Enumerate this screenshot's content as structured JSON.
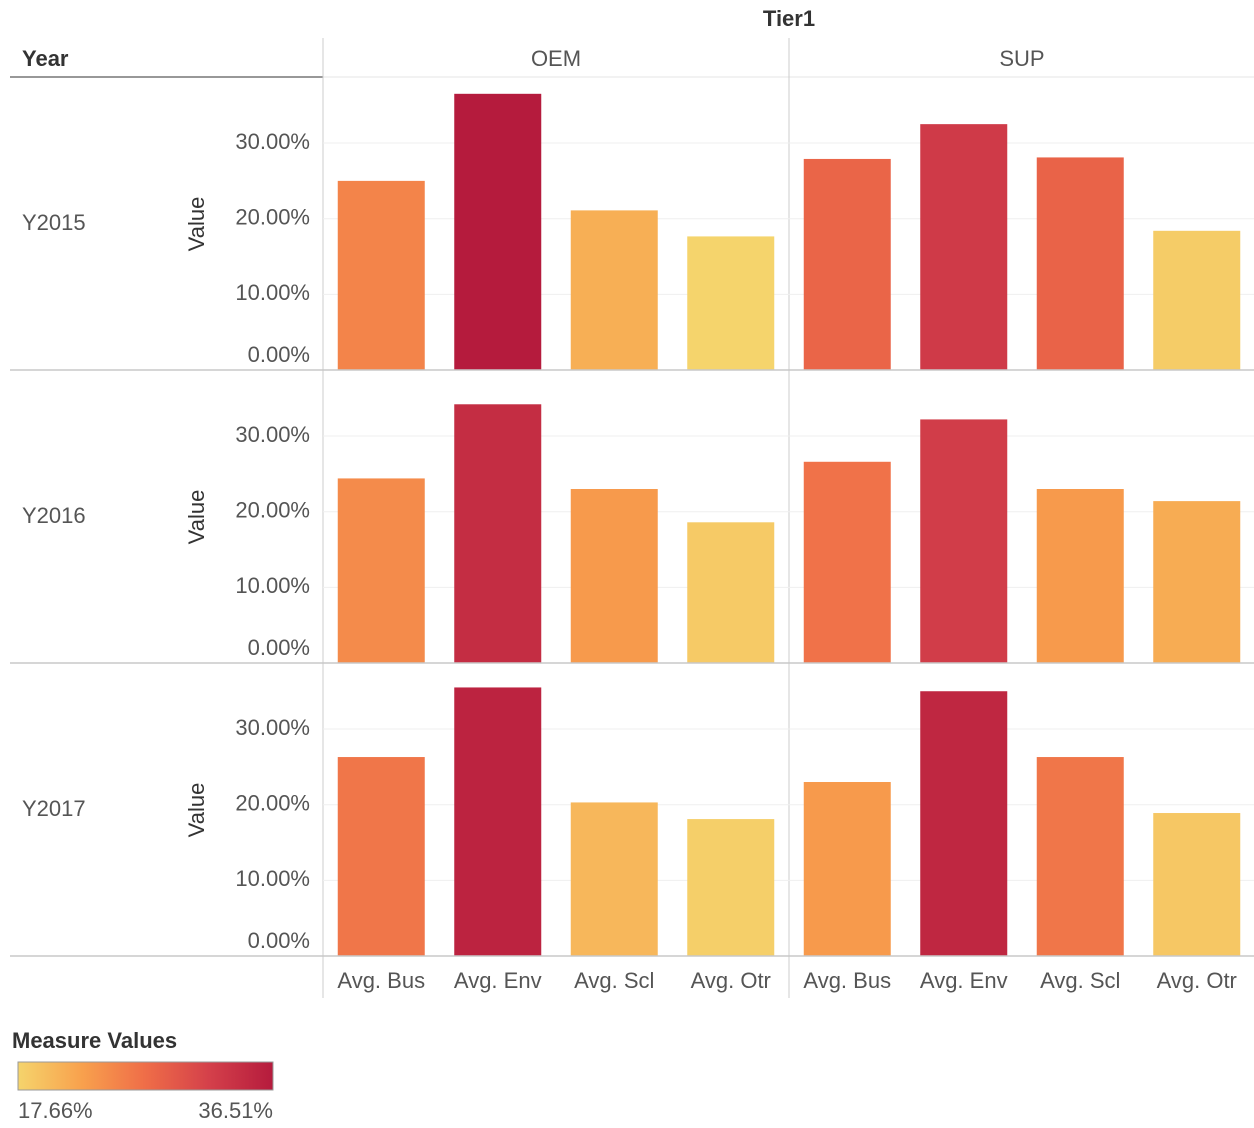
{
  "chart_data": {
    "type": "bar",
    "title": "Tier1",
    "row_title": "Year",
    "columns": [
      "OEM",
      "SUP"
    ],
    "rows": [
      "Y2015",
      "Y2016",
      "Y2017"
    ],
    "categories": [
      "Avg. Bus",
      "Avg. Env",
      "Avg. Scl",
      "Avg. Otr"
    ],
    "y_label": "Value",
    "ylim": [
      0,
      38.6
    ],
    "yticks": [
      {
        "value": 0,
        "label": "0.00%"
      },
      {
        "value": 10,
        "label": "10.00%"
      },
      {
        "value": 20,
        "label": "20.00%"
      },
      {
        "value": 30,
        "label": "30.00%"
      }
    ],
    "grid": true,
    "panels": [
      [
        [
          25.0,
          36.51,
          21.1,
          17.66
        ],
        [
          27.9,
          32.5,
          28.1,
          18.4
        ]
      ],
      [
        [
          24.4,
          34.2,
          23.0,
          18.6
        ],
        [
          26.6,
          32.2,
          23.0,
          21.4
        ]
      ],
      [
        [
          26.3,
          35.5,
          20.3,
          18.1
        ],
        [
          23.0,
          35.0,
          26.3,
          18.9
        ]
      ]
    ],
    "legend": {
      "title": "Measure Values",
      "ticks": [
        {
          "value": 17.66,
          "label": "17.66%"
        },
        {
          "value": 36.51,
          "label": "36.51%"
        }
      ],
      "colors": [
        "#f5d46c",
        "#f8a14d",
        "#ef6d48",
        "#d4404a",
        "#b51b3d"
      ]
    }
  }
}
